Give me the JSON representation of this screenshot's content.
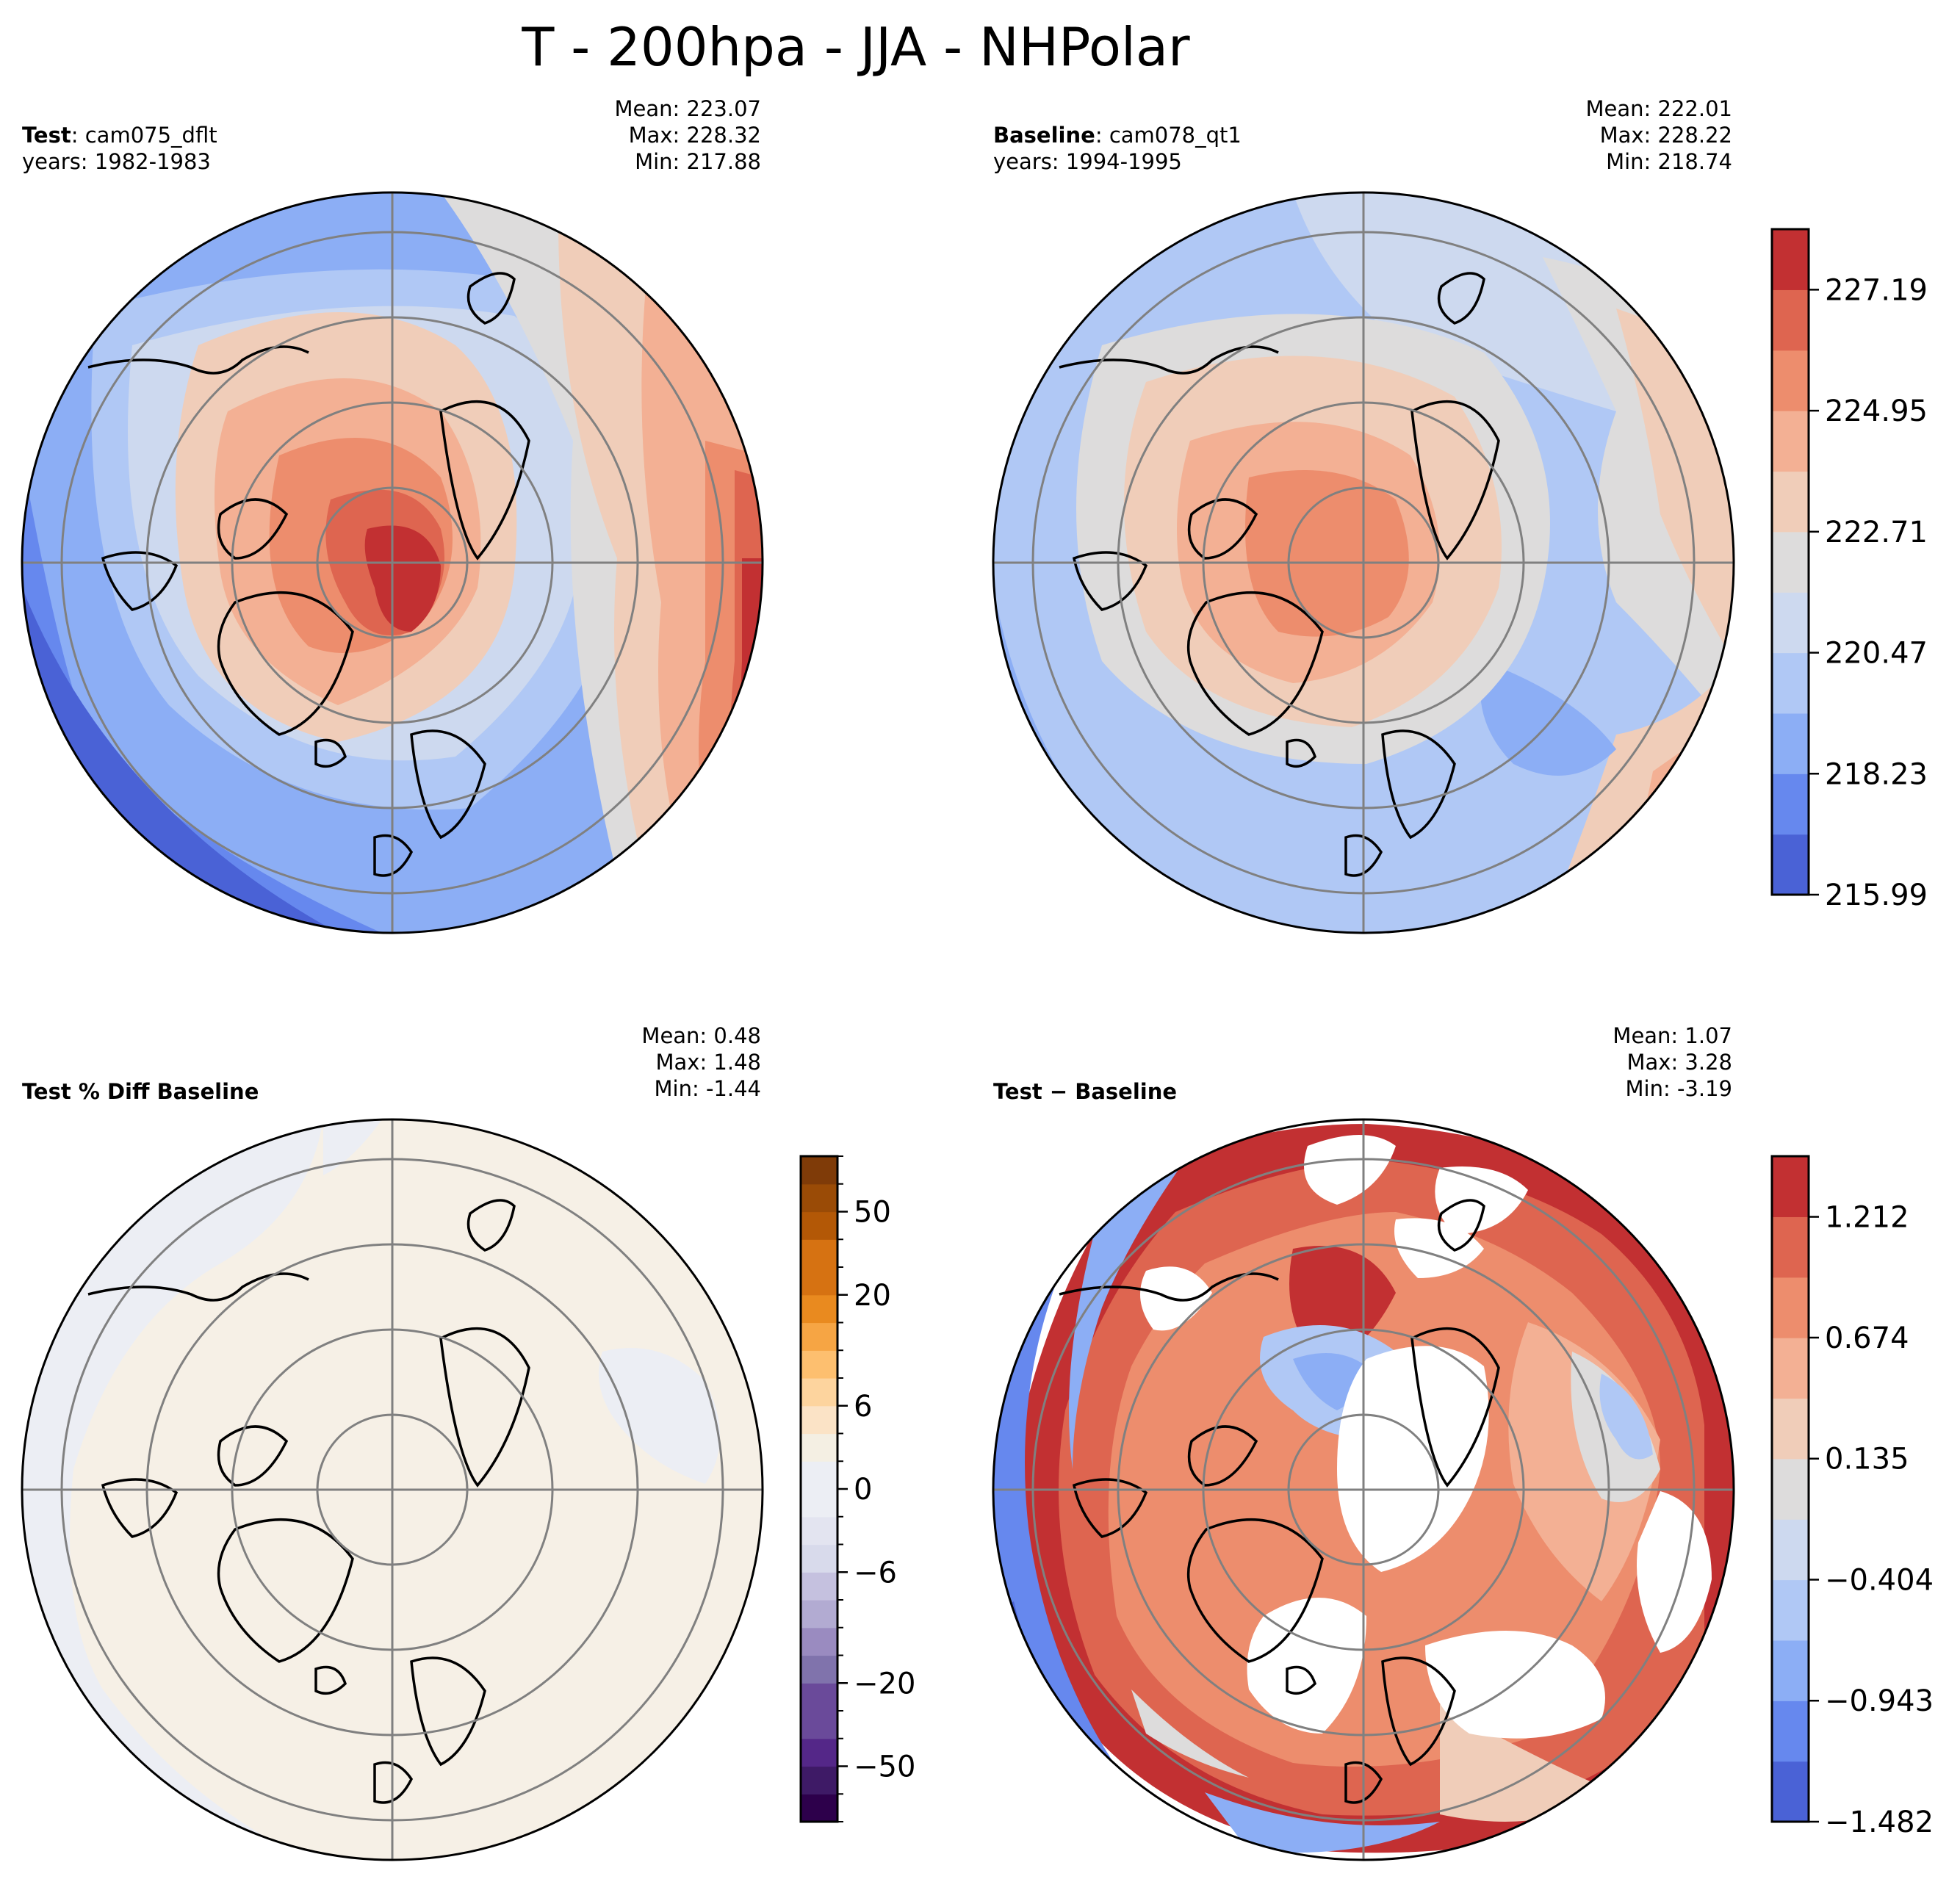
{
  "suptitle": "T - 200hpa - JJA - NHPolar",
  "panels": {
    "test": {
      "label_bold": "Test",
      "label_sep": ": ",
      "case": "cam075_dflt",
      "years": "years: 1982-1983",
      "stats": {
        "mean": "Mean: 223.07",
        "max": "Max: 228.32",
        "min": "Min: 217.88"
      }
    },
    "baseline": {
      "label_bold": "Baseline",
      "label_sep": ": ",
      "case": "cam078_qt1",
      "years": "years: 1994-1995",
      "stats": {
        "mean": "Mean: 222.01",
        "max": "Max: 228.22",
        "min": "Min: 218.74"
      }
    },
    "pctdiff": {
      "title": "Test % Diff Baseline",
      "stats": {
        "mean": "Mean:  0.48",
        "max": "Max:  1.48",
        "min": "Min: -1.44"
      }
    },
    "diff": {
      "title": "Test − Baseline",
      "stats": {
        "mean": "Mean:  1.07",
        "max": "Max:  3.28",
        "min": "Min: -3.19"
      }
    }
  },
  "chart_data": [
    {
      "type": "heatmap",
      "title": "Test: cam075_dflt",
      "projection": "north-polar-stereographic",
      "field": "T at 200hPa, JJA mean",
      "mean": 223.07,
      "max": 228.32,
      "min": 217.88,
      "colormap": "coolwarm",
      "shared_colorbar": {
        "levels": [
          215.99,
          218.23,
          220.47,
          222.71,
          224.95,
          227.19
        ],
        "tick_labels": [
          "215.99",
          "218.23",
          "220.47",
          "222.71",
          "224.95",
          "227.19"
        ],
        "range": [
          215.99,
          228.31
        ],
        "n_bins": 11
      }
    },
    {
      "type": "heatmap",
      "title": "Baseline: cam078_qt1",
      "projection": "north-polar-stereographic",
      "mean": 222.01,
      "max": 228.22,
      "min": 218.74,
      "colormap": "coolwarm"
    },
    {
      "type": "heatmap",
      "title": "Test % Diff Baseline",
      "projection": "north-polar-stereographic",
      "mean": 0.48,
      "max": 1.48,
      "min": -1.44,
      "colormap": "PuOr_r",
      "colorbar": {
        "tick_labels": [
          "−50",
          "−20",
          "−6",
          "0",
          "6",
          "20",
          "50"
        ],
        "boundaries": [
          -100,
          -70,
          -50,
          -40,
          -30,
          -20,
          -15,
          -10,
          -8,
          -6,
          -4,
          -2,
          0,
          2,
          4,
          6,
          8,
          10,
          15,
          20,
          30,
          40,
          50,
          70,
          100
        ]
      }
    },
    {
      "type": "heatmap",
      "title": "Test − Baseline",
      "projection": "north-polar-stereographic",
      "mean": 1.07,
      "max": 3.28,
      "min": -3.19,
      "colormap": "coolwarm",
      "colorbar": {
        "tick_labels": [
          "−1.482",
          "−0.943",
          "−0.404",
          "0.135",
          "0.674",
          "1.212"
        ],
        "range": [
          -1.482,
          1.482
        ],
        "n_bins": 11
      }
    }
  ],
  "colors": {
    "coolwarm": [
      "#4a62d6",
      "#6688ee",
      "#8caef5",
      "#b0c8f5",
      "#cdd9ef",
      "#dddcdc",
      "#f0cdb9",
      "#f3b094",
      "#ed8d6d",
      "#de6550",
      "#c23032"
    ],
    "puor": [
      "#2d004b",
      "#3e1a66",
      "#542788",
      "#6a4a9a",
      "#8073ac",
      "#9a8bc0",
      "#b2abd2",
      "#c5c1df",
      "#d8daeb",
      "#e3e4f0",
      "#eceef4",
      "#f4efe3",
      "#fbe3c6",
      "#fdd49e",
      "#fdbf6f",
      "#f6a544",
      "#e98a1f",
      "#d67212",
      "#b35806",
      "#9a4b06",
      "#7f3b08"
    ],
    "grid": "#808080"
  }
}
